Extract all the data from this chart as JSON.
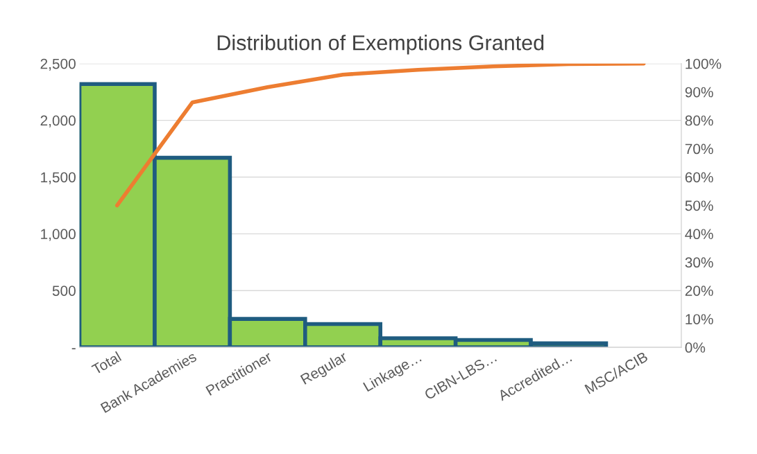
{
  "chart_data": {
    "type": "bar",
    "title": "Distribution of Exemptions Granted",
    "categories": [
      "Total",
      "Bank Academies",
      "Practitioner",
      "Regular",
      "Linkage…",
      "CIBN-LBS…",
      "Accredited…",
      "MSC/ACIB"
    ],
    "series": [
      {
        "color": "#92d050",
        "values": [
          2320,
          1670,
          250,
          205,
          80,
          65,
          35,
          null
        ]
      },
      {
        "type": "line",
        "axis": "y2",
        "color": "#ed7d31",
        "values": [
          50,
          86.3,
          91.7,
          96.1,
          97.8,
          99,
          99.8,
          100
        ]
      }
    ],
    "ylim": [
      0,
      2500
    ],
    "yticks": [
      {
        "value": 0,
        "label": "-"
      },
      500,
      {
        "value": 1000,
        "label": "1,000"
      },
      {
        "value": 1500,
        "label": "1,500"
      },
      {
        "value": 2000,
        "label": "2,000"
      },
      {
        "value": 2500,
        "label": "2,500"
      }
    ],
    "y2lim": [
      0,
      100
    ],
    "y2ticks": [
      {
        "value": 0,
        "label": "0%"
      },
      {
        "value": 10,
        "label": "10%"
      },
      {
        "value": 20,
        "label": "20%"
      },
      {
        "value": 30,
        "label": "30%"
      },
      {
        "value": 40,
        "label": "40%"
      },
      {
        "value": 50,
        "label": "50%"
      },
      {
        "value": 60,
        "label": "60%"
      },
      {
        "value": 70,
        "label": "70%"
      },
      {
        "value": 80,
        "label": "80%"
      },
      {
        "value": 90,
        "label": "90%"
      },
      {
        "value": 100,
        "label": "100%"
      }
    ],
    "grid": "y",
    "legend": false,
    "marker": "none",
    "line_style": "solid"
  }
}
